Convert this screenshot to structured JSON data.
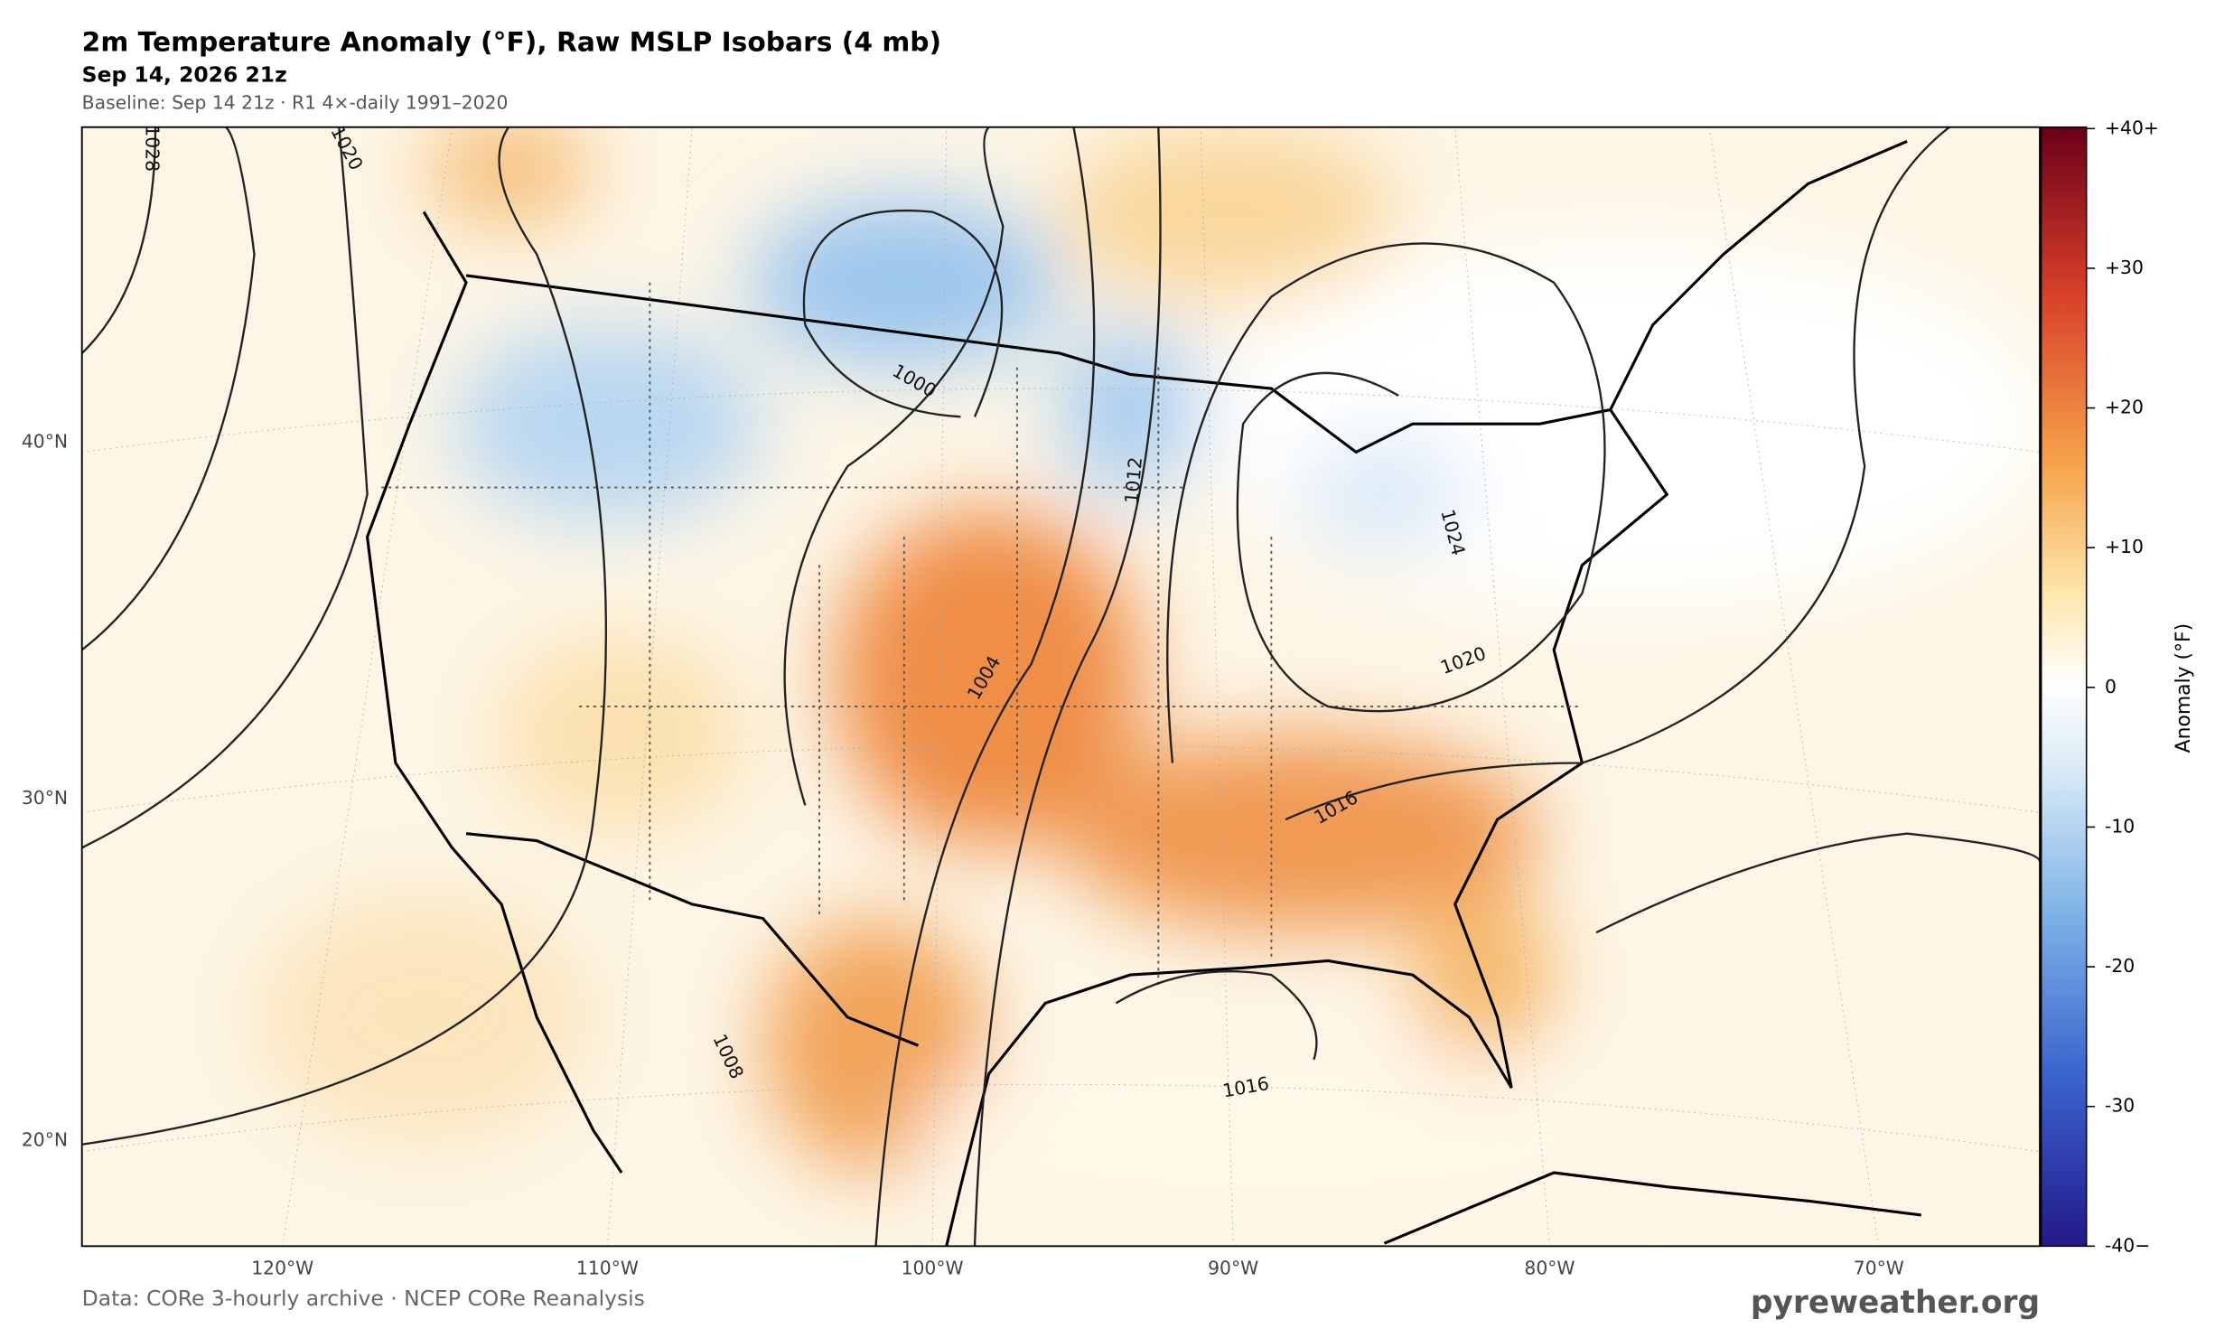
{
  "title": "2m Temperature Anomaly (°F), Raw MSLP Isobars (4 mb)",
  "subtitle": "Sep 14, 2026 21z",
  "baseline": "Baseline: Sep 14 21z · R1 4×-daily 1991–2020",
  "map": {
    "lat_labels": [
      "40°N",
      "30°N",
      "20°N"
    ],
    "lon_labels": [
      "120°W",
      "110°W",
      "100°W",
      "90°W",
      "80°W",
      "70°W"
    ],
    "isobar_labels": [
      1028,
      1020,
      1000,
      1012,
      1024,
      1004,
      1020,
      1016,
      1008,
      1016
    ]
  },
  "colorbar": {
    "label": "Anomaly  (°F)",
    "lim": [
      -40,
      40
    ],
    "ticks": [
      {
        "value": 40,
        "label": "+40+"
      },
      {
        "value": 30,
        "label": "+30"
      },
      {
        "value": 20,
        "label": "+20"
      },
      {
        "value": 10,
        "label": "+10"
      },
      0,
      {
        "value": -10,
        "label": "-10"
      },
      {
        "value": -20,
        "label": "-20"
      },
      {
        "value": -30,
        "label": "-30"
      },
      {
        "value": -40,
        "label": "-40−"
      }
    ]
  },
  "footer": {
    "source": "Data: CORe 3-hourly archive  ·  NCEP CORe Reanalysis",
    "brand": "pyreweather.org"
  }
}
